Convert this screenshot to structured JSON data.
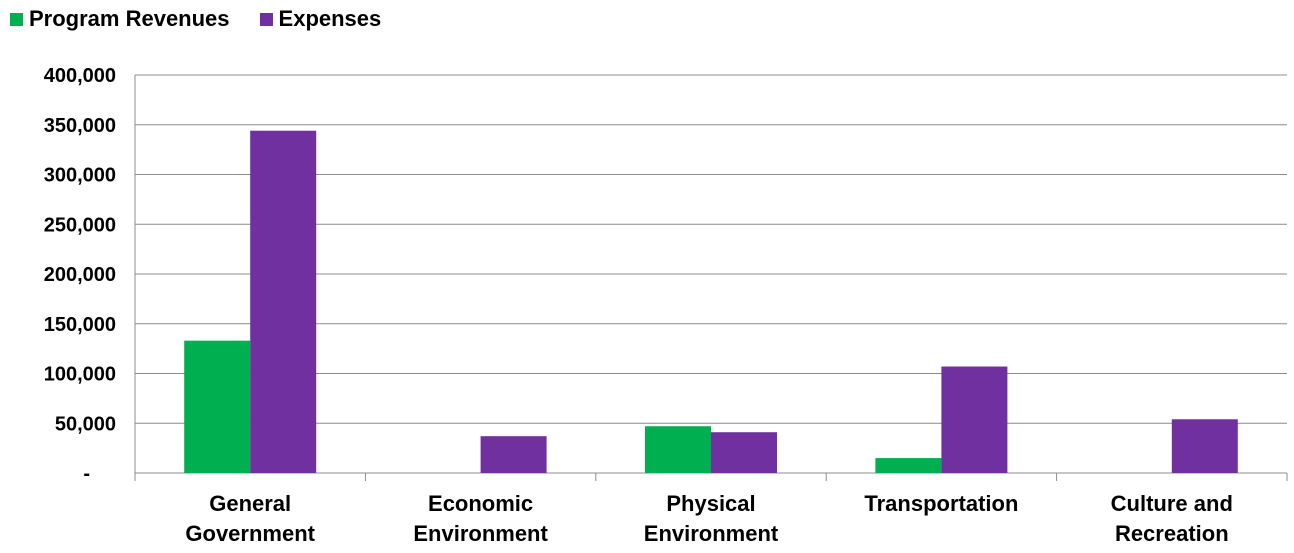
{
  "chart_data": {
    "type": "bar",
    "categories": [
      [
        "General",
        "Government"
      ],
      [
        "Economic",
        "Environment"
      ],
      [
        "Physical",
        "Environment"
      ],
      [
        "Transportation"
      ],
      [
        "Culture and",
        "Recreation"
      ]
    ],
    "series": [
      {
        "name": "Program Revenues",
        "color": "#00b050",
        "values": [
          133000,
          0,
          47000,
          15000,
          0
        ]
      },
      {
        "name": "Expenses",
        "color": "#7030a0",
        "values": [
          344000,
          37000,
          41000,
          107000,
          54000
        ]
      }
    ],
    "y_ticks": [
      "-",
      "50,000",
      "100,000",
      "150,000",
      "200,000",
      "250,000",
      "300,000",
      "350,000",
      "400,000"
    ],
    "ylim": [
      0,
      400000
    ],
    "grid": true,
    "legend_position": "top-left",
    "title": "",
    "xlabel": "",
    "ylabel": ""
  }
}
